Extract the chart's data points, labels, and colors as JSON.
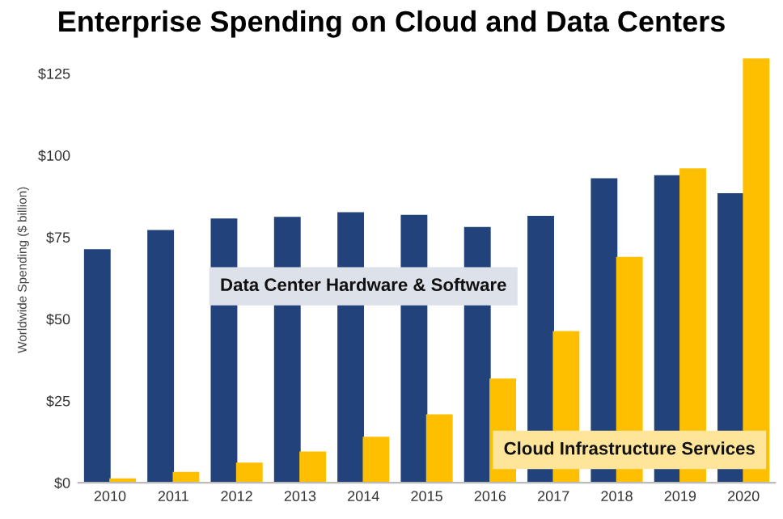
{
  "chart_data": {
    "type": "bar",
    "title": "Enterprise Spending on Cloud and Data Centers",
    "ylabel": "Worldwide Spending ($ billion)",
    "categories": [
      "2010",
      "2011",
      "2012",
      "2013",
      "2014",
      "2015",
      "2016",
      "2017",
      "2018",
      "2019",
      "2020"
    ],
    "series": [
      {
        "name": "Data Center Hardware & Software",
        "color": "#22427c",
        "values": [
          71.3,
          77.2,
          80.7,
          81.2,
          82.6,
          81.8,
          78.1,
          81.5,
          93,
          93.9,
          88.4
        ]
      },
      {
        "name": "Cloud Infrastructure Services",
        "color": "#fdbf00",
        "values": [
          1.3,
          3.3,
          6.1,
          9.5,
          14,
          20.9,
          31.8,
          46.3,
          69,
          96,
          129.6
        ]
      }
    ],
    "ylim": [
      0,
      130
    ],
    "yticks": [
      {
        "value": 0,
        "label": "$0"
      },
      {
        "value": 25,
        "label": "$25"
      },
      {
        "value": 50,
        "label": "$50"
      },
      {
        "value": 75,
        "label": "$75"
      },
      {
        "value": 100,
        "label": "$100"
      },
      {
        "value": 125,
        "label": "$125"
      }
    ],
    "grid": false,
    "legend": false
  }
}
